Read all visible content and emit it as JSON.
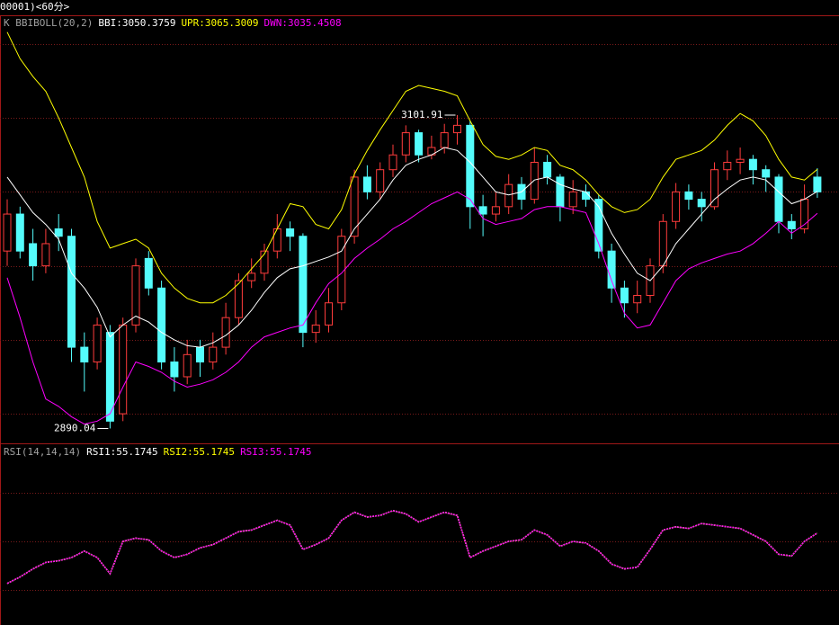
{
  "chart_data": [
    {
      "type": "candlestick",
      "title": "00001)<60分>",
      "indicator": "K  BBIBOLL(20,2)",
      "open": [
        3010,
        3035,
        3015,
        3000,
        3025,
        3020,
        2945,
        2935,
        2955,
        2900,
        2960,
        3005,
        2985,
        2935,
        2925,
        2945,
        2935,
        2945,
        2965,
        2990,
        2995,
        3010,
        3025,
        3020,
        2955,
        2960,
        2975,
        3020,
        3060,
        3050,
        3065,
        3075,
        3090,
        3075,
        3080,
        3090,
        3095,
        3040,
        3035,
        3040,
        3055,
        3045,
        3070,
        3060,
        3040,
        3050,
        3045,
        3010,
        2985,
        2975,
        2980,
        3000,
        3030,
        3050,
        3045,
        3040,
        3065,
        3070,
        3072,
        3065,
        3060,
        3030,
        3025,
        3060
      ],
      "high": [
        3045,
        3040,
        3025,
        3025,
        3035,
        3025,
        2955,
        2965,
        2960,
        2965,
        3005,
        3010,
        2990,
        2945,
        2950,
        2950,
        2955,
        2975,
        2995,
        3005,
        3015,
        3035,
        3030,
        3022,
        2970,
        2985,
        3025,
        3065,
        3068,
        3070,
        3082,
        3095,
        3092,
        3088,
        3096,
        3101.91,
        3098,
        3048,
        3050,
        3062,
        3060,
        3080,
        3075,
        3062,
        3058,
        3055,
        3048,
        3015,
        2990,
        2990,
        3005,
        3035,
        3056,
        3055,
        3050,
        3070,
        3078,
        3080,
        3075,
        3068,
        3062,
        3035,
        3055,
        3066
      ],
      "low": [
        3000,
        3005,
        2990,
        2995,
        3010,
        2935,
        2915,
        2930,
        2890.04,
        2895,
        2955,
        2980,
        2930,
        2915,
        2920,
        2925,
        2930,
        2940,
        2960,
        2985,
        2990,
        3005,
        3010,
        2945,
        2948,
        2955,
        2970,
        3015,
        3045,
        3045,
        3060,
        3070,
        3070,
        3072,
        3076,
        3082,
        3025,
        3020,
        3030,
        3035,
        3038,
        3042,
        3055,
        3030,
        3035,
        3040,
        3005,
        2975,
        2965,
        2968,
        2975,
        2995,
        3025,
        3038,
        3030,
        3038,
        3058,
        3062,
        3055,
        3050,
        3022,
        3018,
        3022,
        3046
      ],
      "close": [
        3035,
        3010,
        3000,
        3015,
        3020,
        2945,
        2935,
        2960,
        2895,
        2960,
        3000,
        2985,
        2935,
        2925,
        2940,
        2935,
        2945,
        2965,
        2990,
        2995,
        3010,
        3025,
        3020,
        2955,
        2960,
        2975,
        3020,
        3060,
        3050,
        3065,
        3075,
        3090,
        3075,
        3080,
        3090,
        3095,
        3040,
        3035,
        3040,
        3055,
        3045,
        3070,
        3060,
        3040,
        3050,
        3045,
        3010,
        2985,
        2975,
        2980,
        3000,
        3030,
        3050,
        3045,
        3040,
        3065,
        3070,
        3072,
        3065,
        3060,
        3030,
        3025,
        3045,
        3050
      ],
      "up_color": "#ff3c3c",
      "down_color": "#54fcfc",
      "series": [
        {
          "name": "BBI:3050.3759",
          "color": "#ffffff",
          "values": [
            3060,
            3048,
            3036,
            3028,
            3018,
            2995,
            2985,
            2972,
            2952,
            2960,
            2966,
            2962,
            2955,
            2950,
            2946,
            2945,
            2948,
            2953,
            2960,
            2970,
            2982,
            2992,
            2998,
            3000,
            3003,
            3006,
            3010,
            3025,
            3035,
            3045,
            3058,
            3068,
            3072,
            3075,
            3080,
            3078,
            3070,
            3060,
            3050,
            3048,
            3050,
            3058,
            3060,
            3055,
            3052,
            3050,
            3040,
            3022,
            3008,
            2995,
            2990,
            3000,
            3015,
            3025,
            3035,
            3045,
            3052,
            3058,
            3060,
            3058,
            3050,
            3042,
            3045,
            3050.3759
          ]
        },
        {
          "name": "UPR:3065.3009",
          "color": "#ffff00",
          "values": [
            3158,
            3140,
            3128,
            3118,
            3100,
            3080,
            3060,
            3030,
            3012,
            3015,
            3018,
            3012,
            2995,
            2985,
            2978,
            2975,
            2975,
            2980,
            2988,
            2998,
            3008,
            3025,
            3042,
            3040,
            3028,
            3025,
            3038,
            3062,
            3078,
            3092,
            3105,
            3118,
            3122,
            3120,
            3118,
            3115,
            3098,
            3082,
            3074,
            3072,
            3075,
            3080,
            3078,
            3068,
            3065,
            3058,
            3048,
            3040,
            3036,
            3038,
            3045,
            3060,
            3072,
            3075,
            3078,
            3085,
            3095,
            3103,
            3098,
            3088,
            3072,
            3060,
            3058,
            3065.3009
          ]
        },
        {
          "name": "DWN:3035.4508",
          "color": "#ff00ff",
          "values": [
            2992,
            2965,
            2935,
            2910,
            2905,
            2898,
            2893,
            2895,
            2900,
            2918,
            2935,
            2932,
            2928,
            2922,
            2918,
            2920,
            2923,
            2928,
            2935,
            2945,
            2952,
            2955,
            2958,
            2960,
            2975,
            2988,
            2995,
            3005,
            3012,
            3018,
            3025,
            3030,
            3036,
            3042,
            3046,
            3050,
            3045,
            3032,
            3028,
            3030,
            3032,
            3038,
            3040,
            3040,
            3038,
            3036,
            3015,
            2990,
            2968,
            2958,
            2960,
            2975,
            2990,
            2998,
            3002,
            3005,
            3008,
            3010,
            3015,
            3022,
            3030,
            3022,
            3028,
            3035.4508
          ]
        }
      ],
      "ylim": [
        2880,
        3170
      ],
      "yticks": [
        2900,
        2950,
        3000,
        3050,
        3100,
        3150
      ],
      "grid": true,
      "annotations": [
        {
          "text": "3101.91",
          "value": 3101.91
        },
        {
          "text": "2890.04",
          "value": 2890.04
        }
      ]
    },
    {
      "type": "line",
      "indicator": "RSI(14,14,14)",
      "series": [
        {
          "name": "RSI1:55.1745",
          "color": "#ffffff",
          "values": [
            24,
            28,
            33,
            37,
            38,
            40,
            44,
            40,
            30,
            50,
            52,
            51,
            44,
            40,
            42,
            46,
            48,
            52,
            56,
            57,
            60,
            63,
            60,
            45,
            48,
            52,
            63,
            68,
            65,
            66,
            69,
            67,
            62,
            65,
            68,
            66,
            40,
            44,
            47,
            50,
            51,
            57,
            54,
            47,
            50,
            49,
            44,
            36,
            33,
            34,
            45,
            57,
            59,
            58,
            61,
            60,
            59,
            58,
            54,
            50,
            42,
            41,
            50,
            55.1745
          ]
        },
        {
          "name": "RSI2:55.1745",
          "color": "#ffff00",
          "values": [
            24,
            28,
            33,
            37,
            38,
            40,
            44,
            40,
            30,
            50,
            52,
            51,
            44,
            40,
            42,
            46,
            48,
            52,
            56,
            57,
            60,
            63,
            60,
            45,
            48,
            52,
            63,
            68,
            65,
            66,
            69,
            67,
            62,
            65,
            68,
            66,
            40,
            44,
            47,
            50,
            51,
            57,
            54,
            47,
            50,
            49,
            44,
            36,
            33,
            34,
            45,
            57,
            59,
            58,
            61,
            60,
            59,
            58,
            54,
            50,
            42,
            41,
            50,
            55.1745
          ]
        },
        {
          "name": "RSI3:55.1745",
          "color": "#ff00ff",
          "values": [
            24,
            28,
            33,
            37,
            38,
            40,
            44,
            40,
            30,
            50,
            52,
            51,
            44,
            40,
            42,
            46,
            48,
            52,
            56,
            57,
            60,
            63,
            60,
            45,
            48,
            52,
            63,
            68,
            65,
            66,
            69,
            67,
            62,
            65,
            68,
            66,
            40,
            44,
            47,
            50,
            51,
            57,
            54,
            47,
            50,
            49,
            44,
            36,
            33,
            34,
            45,
            57,
            59,
            58,
            61,
            60,
            59,
            58,
            54,
            50,
            42,
            41,
            50,
            55.1745
          ]
        }
      ],
      "ylim": [
        0,
        100
      ],
      "yticks": [
        20,
        50,
        80
      ],
      "grid": true
    }
  ]
}
